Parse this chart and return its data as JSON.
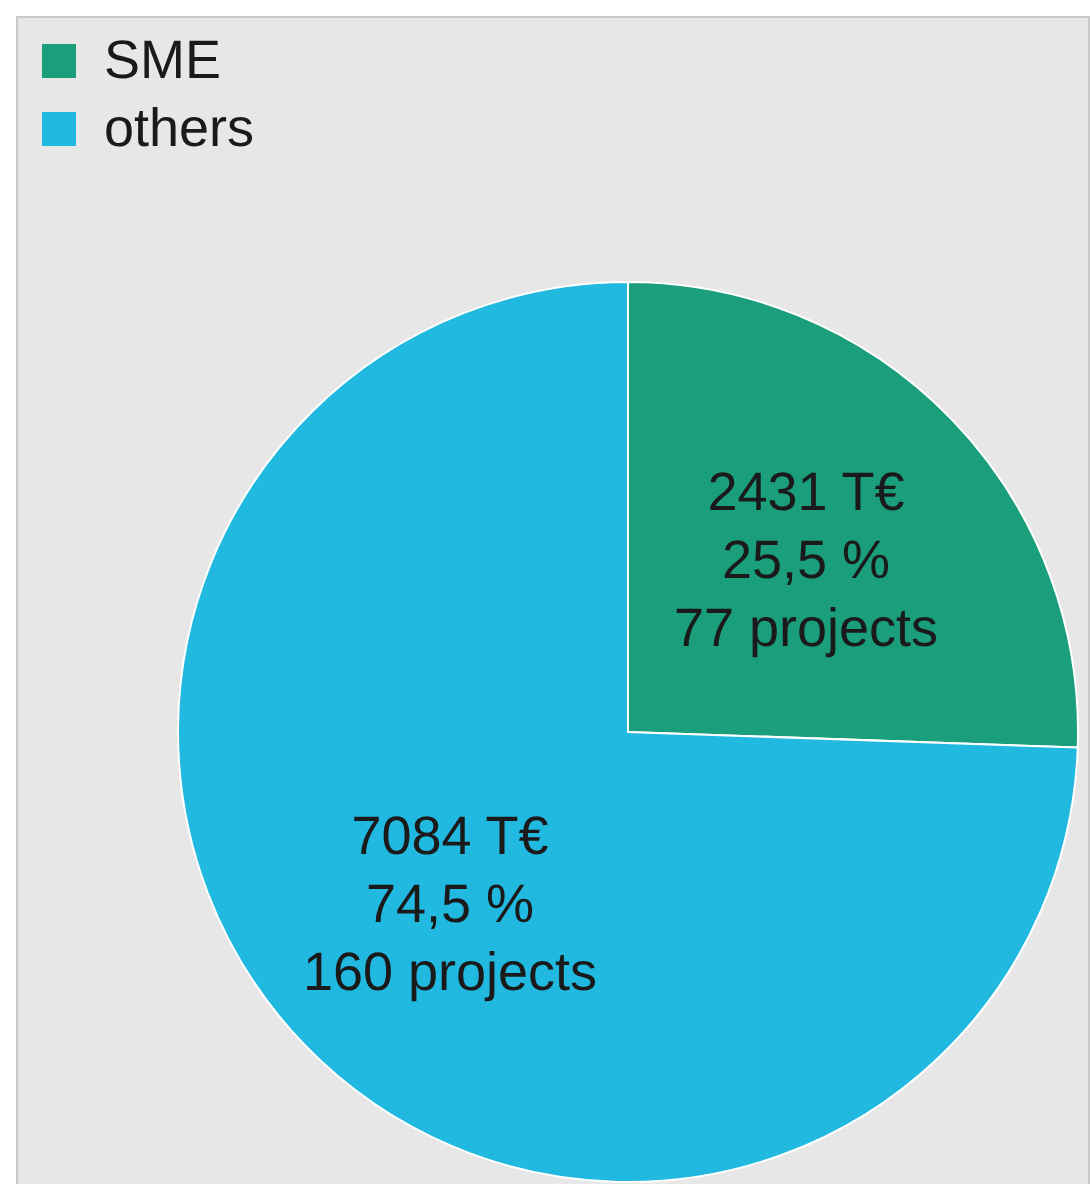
{
  "chart_data": {
    "type": "pie",
    "categories": [
      "SME",
      "others"
    ],
    "values": [
      2431,
      7084
    ],
    "colors": [
      "#1a9e7c",
      "#22b9e1"
    ],
    "value_labels": [
      "2431 T€\n25,5 %\n77 projects",
      "7084 T€\n74,5 %\n160 projects"
    ],
    "legend": "top left"
  }
}
